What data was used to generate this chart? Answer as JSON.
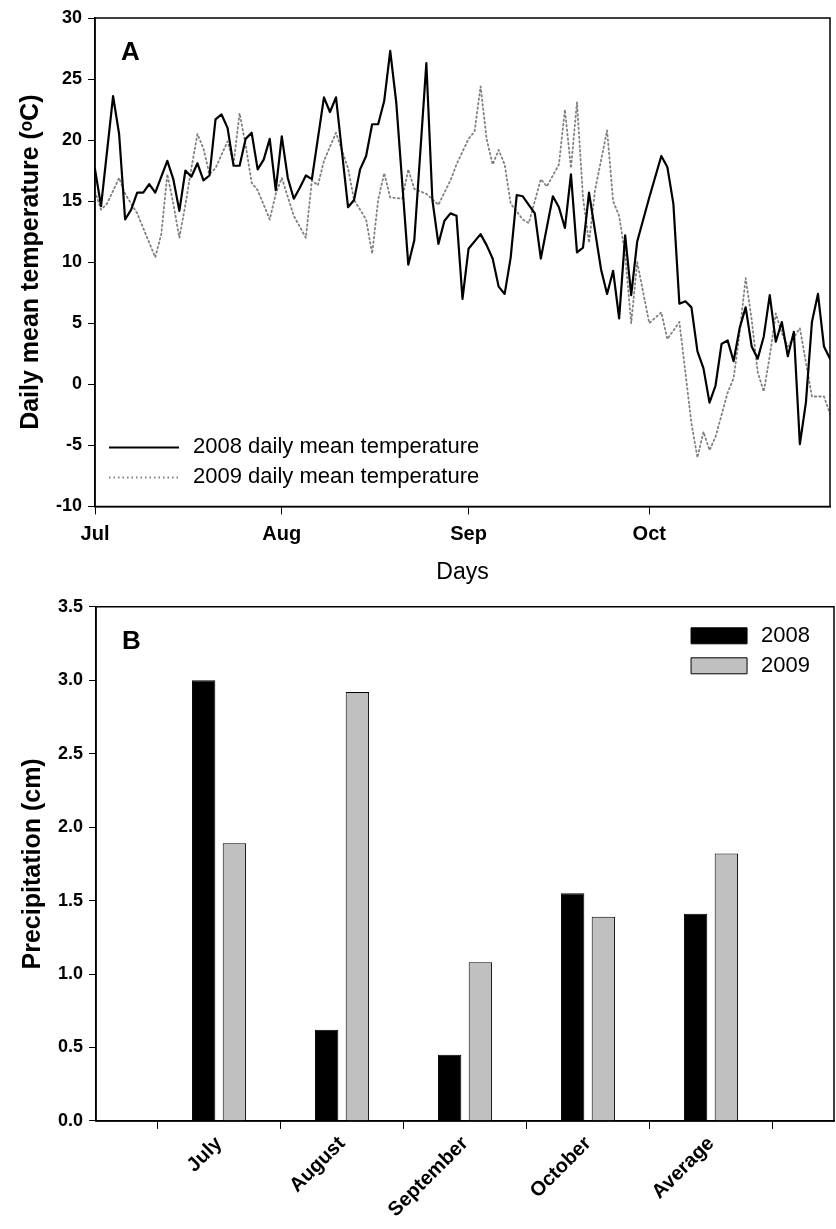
{
  "chart_data": [
    {
      "type": "line",
      "xlabel": "Days",
      "ylabel": "Daily mean temperature (ᵒC)",
      "annotations": [
        "A"
      ],
      "legend": "bottom left",
      "marker": "none",
      "xlim": [
        "--07-01",
        "--10-31"
      ],
      "xticks": [
        {
          "value": "--07-01",
          "label": "Jul"
        },
        {
          "value": "--08-01",
          "label": "Aug"
        },
        {
          "value": "--09-01",
          "label": "Sep"
        },
        {
          "value": "--10-01",
          "label": "Oct"
        }
      ],
      "ylim": [
        -10,
        30
      ],
      "yticks": [
        -10,
        -5,
        0,
        5,
        10,
        15,
        20,
        25,
        30
      ],
      "series": [
        {
          "name": "2008 daily mean temperature",
          "color": "#000000",
          "line_style": "solid",
          "x": [
            "--07-01",
            "--07-02",
            "--07-04",
            "--07-05",
            "--07-06",
            "--07-07",
            "--07-08",
            "--07-09",
            "--07-10",
            "--07-11",
            "--07-13",
            "--07-14",
            "--07-15",
            "--07-16",
            "--07-17",
            "--07-18",
            "--07-19",
            "--07-20",
            "--07-21",
            "--07-22",
            "--07-23",
            "--07-24",
            "--07-25",
            "--07-26",
            "--07-27",
            "--07-28",
            "--07-29",
            "--07-30",
            "--07-31",
            "--08-01",
            "--08-02",
            "--08-03",
            "--08-04",
            "--08-05",
            "--08-06",
            "--08-08",
            "--08-09",
            "--08-10",
            "--08-12",
            "--08-13",
            "--08-14",
            "--08-15",
            "--08-16",
            "--08-17",
            "--08-18",
            "--08-19",
            "--08-20",
            "--08-22",
            "--08-23",
            "--08-25",
            "--08-26",
            "--08-27",
            "--08-28",
            "--08-29",
            "--08-30",
            "--08-31",
            "--09-01",
            "--09-03",
            "--09-04",
            "--09-05",
            "--09-06",
            "--09-07",
            "--09-08",
            "--09-09",
            "--09-10",
            "--09-11",
            "--09-12",
            "--09-13",
            "--09-15",
            "--09-16",
            "--09-17",
            "--09-18",
            "--09-19",
            "--09-20",
            "--09-21",
            "--09-23",
            "--09-24",
            "--09-25",
            "--09-26",
            "--09-27",
            "--09-28",
            "--09-29",
            "--10-01",
            "--10-03",
            "--10-04",
            "--10-05",
            "--10-06",
            "--10-07",
            "--10-08",
            "--10-09",
            "--10-10",
            "--10-11",
            "--10-12",
            "--10-13",
            "--10-14",
            "--10-15",
            "--10-16",
            "--10-17",
            "--10-18",
            "--10-19",
            "--10-20",
            "--10-21",
            "--10-22",
            "--10-23",
            "--10-24",
            "--10-25",
            "--10-26",
            "--10-27",
            "--10-28",
            "--10-29",
            "--10-30",
            "--10-31"
          ],
          "values": [
            17.6,
            14.6,
            23.6,
            20.5,
            13.5,
            14.3,
            15.7,
            15.7,
            16.4,
            15.7,
            18.3,
            16.8,
            14.2,
            17.5,
            17.0,
            18.1,
            16.7,
            17.1,
            21.7,
            22.1,
            21.0,
            17.9,
            17.9,
            20.1,
            20.6,
            17.6,
            18.4,
            20.1,
            15.9,
            20.3,
            16.9,
            15.2,
            16.1,
            17.1,
            16.8,
            23.5,
            22.3,
            23.5,
            14.5,
            15.1,
            17.6,
            18.7,
            21.3,
            21.3,
            23.2,
            27.3,
            23.1,
            9.8,
            11.8,
            26.3,
            15.1,
            11.5,
            13.4,
            14.0,
            13.8,
            7.0,
            11.1,
            12.3,
            11.4,
            10.3,
            8.0,
            7.4,
            10.4,
            15.5,
            15.4,
            14.7,
            14.0,
            10.3,
            15.4,
            14.5,
            12.8,
            17.2,
            10.8,
            11.2,
            15.7,
            9.4,
            7.4,
            9.3,
            5.4,
            12.2,
            7.3,
            11.7,
            15.3,
            18.7,
            17.8,
            14.8,
            6.6,
            6.8,
            6.3,
            2.7,
            1.3,
            -1.5,
            -0.1,
            3.3,
            3.6,
            1.9,
            4.6,
            6.3,
            3.1,
            2.1,
            3.9,
            7.3,
            3.5,
            5.1,
            2.3,
            4.3,
            -4.9,
            -1.5,
            5.1,
            7.4,
            3.1,
            2.1
          ]
        },
        {
          "name": "2009 daily mean temperature",
          "color": "#808080",
          "line_style": "dotted",
          "x": [
            "--07-01",
            "--07-02",
            "--07-03",
            "--07-05",
            "--07-06",
            "--07-08",
            "--07-11",
            "--07-12",
            "--07-13",
            "--07-14",
            "--07-15",
            "--07-16",
            "--07-17",
            "--07-18",
            "--07-19",
            "--07-20",
            "--07-21",
            "--07-23",
            "--07-24",
            "--07-25",
            "--07-26",
            "--07-27",
            "--07-28",
            "--07-30",
            "--07-31",
            "--08-01",
            "--08-03",
            "--08-05",
            "--08-06",
            "--08-07",
            "--08-08",
            "--08-10",
            "--08-12",
            "--08-13",
            "--08-15",
            "--08-16",
            "--08-17",
            "--08-18",
            "--08-19",
            "--08-21",
            "--08-22",
            "--08-23",
            "--08-25",
            "--08-27",
            "--08-29",
            "--08-30",
            "--09-01",
            "--09-02",
            "--09-03",
            "--09-04",
            "--09-05",
            "--09-06",
            "--09-07",
            "--09-08",
            "--09-10",
            "--09-11",
            "--09-13",
            "--09-14",
            "--09-16",
            "--09-17",
            "--09-18",
            "--09-19",
            "--09-20",
            "--09-21",
            "--09-22",
            "--09-24",
            "--09-25",
            "--09-26",
            "--09-27",
            "--09-28",
            "--09-29",
            "--10-01",
            "--10-03",
            "--10-04",
            "--10-06",
            "--10-08",
            "--10-09",
            "--10-10",
            "--10-11",
            "--10-12",
            "--10-14",
            "--10-15",
            "--10-16",
            "--10-17",
            "--10-18",
            "--10-19",
            "--10-20",
            "--10-21",
            "--10-22",
            "--10-23",
            "--10-24",
            "--10-26",
            "--10-28",
            "--10-30",
            "--10-31"
          ],
          "values": [
            15.8,
            14.3,
            14.8,
            16.9,
            15.6,
            14.0,
            10.4,
            12.3,
            17.2,
            14.8,
            12.0,
            14.7,
            17.7,
            20.5,
            19.3,
            17.2,
            17.7,
            19.9,
            18.1,
            22.2,
            19.6,
            16.5,
            15.9,
            13.5,
            15.6,
            16.9,
            13.8,
            12.0,
            16.7,
            16.3,
            18.3,
            20.6,
            17.7,
            15.1,
            13.5,
            10.7,
            15.1,
            17.3,
            15.3,
            15.2,
            17.6,
            16.0,
            15.6,
            14.7,
            16.7,
            18.0,
            20.1,
            20.7,
            24.4,
            20.1,
            18.0,
            19.2,
            18.0,
            14.8,
            13.5,
            13.2,
            16.8,
            16.2,
            18.0,
            22.5,
            17.7,
            23.1,
            15.3,
            11.6,
            15.9,
            20.8,
            15.0,
            13.8,
            10.6,
            5.0,
            10.0,
            5.0,
            5.9,
            3.7,
            5.1,
            -3.2,
            -6.0,
            -3.9,
            -5.4,
            -4.3,
            -0.7,
            0.5,
            4.2,
            8.7,
            5.3,
            1.0,
            -0.6,
            2.3,
            5.8,
            4.2,
            3.1,
            4.6,
            -1.0,
            -1.0,
            -2.4
          ]
        }
      ]
    },
    {
      "type": "bar",
      "ylabel": "Precipitation (cm)",
      "annotations": [
        "B"
      ],
      "legend": "top right",
      "categories": [
        "July",
        "August",
        "September",
        "October",
        "Average"
      ],
      "ylim": [
        0,
        3.5
      ],
      "yticks": [
        {
          "value": 0,
          "label": "0.0"
        },
        0.5,
        {
          "value": 1,
          "label": "1.0"
        },
        1.5,
        {
          "value": 2,
          "label": "2.0"
        },
        2.5,
        {
          "value": 3,
          "label": "3.0"
        },
        3.5
      ],
      "series": [
        {
          "name": "2008",
          "color": "#000000",
          "values": [
            3.0,
            0.62,
            0.45,
            1.55,
            1.41
          ]
        },
        {
          "name": "2009",
          "color": "#c0c0c0",
          "values": [
            1.89,
            2.92,
            1.08,
            1.39,
            1.82
          ]
        }
      ]
    }
  ]
}
